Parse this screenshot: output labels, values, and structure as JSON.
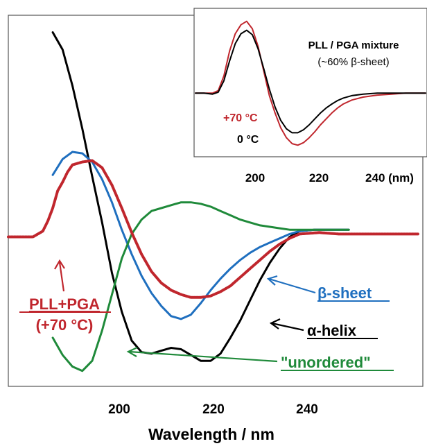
{
  "chart_data": [
    {
      "type": "line",
      "xlabel": "Wavelength / nm",
      "ylabel": "",
      "xlim": [
        181,
        265
      ],
      "ylim": [
        -1.1,
        1.5
      ],
      "xticks": [
        "200",
        "220",
        "240"
      ],
      "grid": false,
      "series": [
        {
          "name": "α-helix",
          "color": "#000000",
          "style": "solid",
          "x": [
            190,
            192,
            194,
            196,
            198,
            200,
            202,
            204,
            206,
            208,
            210,
            212,
            214,
            216,
            218,
            220,
            222,
            224,
            226,
            228,
            230,
            232,
            234,
            236,
            238,
            240,
            243,
            246,
            250
          ],
          "y": [
            1.42,
            1.3,
            1.05,
            0.75,
            0.42,
            0.1,
            -0.25,
            -0.52,
            -0.72,
            -0.8,
            -0.81,
            -0.79,
            -0.77,
            -0.78,
            -0.82,
            -0.86,
            -0.86,
            -0.81,
            -0.7,
            -0.58,
            -0.44,
            -0.3,
            -0.18,
            -0.08,
            0.0,
            0.04,
            0.05,
            0.05,
            0.05
          ]
        },
        {
          "name": "β-sheet",
          "color": "#1f6fbf",
          "style": "solid",
          "x": [
            190,
            192,
            194,
            196,
            198,
            200,
            202,
            204,
            206,
            208,
            210,
            212,
            214,
            216,
            218,
            220,
            222,
            224,
            226,
            228,
            230,
            232,
            234,
            236,
            238,
            240,
            243,
            246,
            250
          ],
          "y": [
            0.43,
            0.54,
            0.59,
            0.58,
            0.52,
            0.4,
            0.24,
            0.05,
            -0.12,
            -0.27,
            -0.39,
            -0.48,
            -0.55,
            -0.57,
            -0.54,
            -0.46,
            -0.37,
            -0.29,
            -0.22,
            -0.16,
            -0.11,
            -0.07,
            -0.04,
            -0.01,
            0.02,
            0.04,
            0.05,
            0.05,
            0.05
          ]
        },
        {
          "name": "\"unordered\"",
          "color": "#1f8a3a",
          "style": "solid",
          "x": [
            190,
            192,
            194,
            196,
            198,
            200,
            202,
            204,
            206,
            208,
            210,
            212,
            214,
            216,
            218,
            220,
            222,
            224,
            226,
            228,
            230,
            232,
            234,
            236,
            238,
            240,
            243,
            246,
            250
          ],
          "y": [
            -0.7,
            -0.82,
            -0.9,
            -0.93,
            -0.86,
            -0.65,
            -0.4,
            -0.15,
            0.02,
            0.12,
            0.18,
            0.2,
            0.22,
            0.24,
            0.24,
            0.23,
            0.21,
            0.18,
            0.15,
            0.12,
            0.1,
            0.08,
            0.07,
            0.06,
            0.05,
            0.05,
            0.05,
            0.05,
            0.05
          ]
        },
        {
          "name": "PLL+PGA (+70 °C)",
          "color": "#c0262d",
          "style": "dotted",
          "x": [
            181,
            184,
            186,
            188,
            189,
            190,
            191,
            192,
            193,
            194,
            196,
            198,
            200,
            202,
            204,
            206,
            208,
            210,
            212,
            214,
            216,
            218,
            220,
            222,
            224,
            226,
            228,
            230,
            232,
            234,
            236,
            238,
            240,
            244,
            248,
            252,
            256,
            260,
            264
          ],
          "y": [
            0.0,
            0.0,
            0.0,
            0.04,
            0.11,
            0.2,
            0.32,
            0.38,
            0.45,
            0.5,
            0.52,
            0.53,
            0.48,
            0.36,
            0.2,
            0.03,
            -0.12,
            -0.24,
            -0.32,
            -0.37,
            -0.4,
            -0.42,
            -0.42,
            -0.41,
            -0.38,
            -0.34,
            -0.28,
            -0.22,
            -0.16,
            -0.1,
            -0.05,
            -0.01,
            0.02,
            0.03,
            0.02,
            0.02,
            0.02,
            0.02,
            0.02
          ]
        }
      ],
      "annotations": {
        "beta": "β-sheet",
        "alpha": "α-helix",
        "unordered": "\"unordered\"",
        "pllpga_line1": "PLL+PGA",
        "pllpga_line2": "(+70 °C)"
      }
    },
    {
      "type": "line",
      "title": "PLL / PGA mixture",
      "subtitle": "(~60% β-sheet)",
      "xlim": [
        181,
        262
      ],
      "ylim": [
        -1.2,
        1.6
      ],
      "xticks": [
        "200",
        "220",
        "240 (nm)"
      ],
      "grid": false,
      "series": [
        {
          "name": "+70 °C",
          "color": "#c0262d",
          "x": [
            181,
            184,
            187,
            189,
            191,
            193,
            195,
            197,
            199,
            201,
            203,
            205,
            207,
            209,
            211,
            213,
            215,
            217,
            219,
            221,
            223,
            225,
            227,
            229,
            231,
            233,
            236,
            240,
            245,
            250,
            255,
            262
          ],
          "y": [
            0.0,
            0.0,
            0.0,
            0.05,
            0.35,
            0.85,
            1.2,
            1.38,
            1.45,
            1.3,
            0.95,
            0.45,
            -0.05,
            -0.4,
            -0.7,
            -0.9,
            -1.02,
            -1.05,
            -1.0,
            -0.9,
            -0.78,
            -0.64,
            -0.52,
            -0.4,
            -0.3,
            -0.22,
            -0.14,
            -0.08,
            -0.04,
            -0.02,
            0.0,
            0.0
          ]
        },
        {
          "name": "0 °C",
          "color": "#000000",
          "x": [
            181,
            184,
            187,
            189,
            191,
            193,
            195,
            197,
            199,
            201,
            203,
            205,
            207,
            209,
            211,
            213,
            215,
            217,
            219,
            221,
            223,
            225,
            227,
            229,
            231,
            233,
            236,
            240,
            245,
            250,
            255,
            262
          ],
          "y": [
            0.0,
            0.0,
            -0.02,
            0.02,
            0.25,
            0.65,
            1.0,
            1.2,
            1.27,
            1.18,
            0.9,
            0.5,
            0.08,
            -0.28,
            -0.55,
            -0.72,
            -0.8,
            -0.8,
            -0.74,
            -0.64,
            -0.52,
            -0.4,
            -0.3,
            -0.22,
            -0.15,
            -0.1,
            -0.05,
            -0.02,
            0.0,
            0.0,
            0.0,
            0.0
          ]
        }
      ]
    }
  ]
}
